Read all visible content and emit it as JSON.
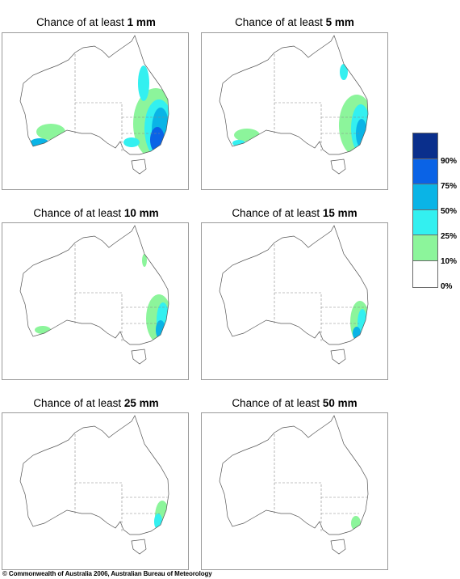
{
  "title_prefix": "Chance of at least",
  "panels": [
    {
      "amount": "1 mm"
    },
    {
      "amount": "5 mm"
    },
    {
      "amount": "10 mm"
    },
    {
      "amount": "15 mm"
    },
    {
      "amount": "25 mm"
    },
    {
      "amount": "50 mm"
    }
  ],
  "legend": {
    "colors": [
      "#0a2f8c",
      "#0a63e6",
      "#0ab4e6",
      "#33f0f0",
      "#8cf59b",
      "#ffffff"
    ],
    "labels": [
      "90%",
      "75%",
      "50%",
      "25%",
      "10%",
      "0%"
    ]
  },
  "copyright": "© Commonwealth of Australia 2006, Australian Bureau of Meteorology"
}
